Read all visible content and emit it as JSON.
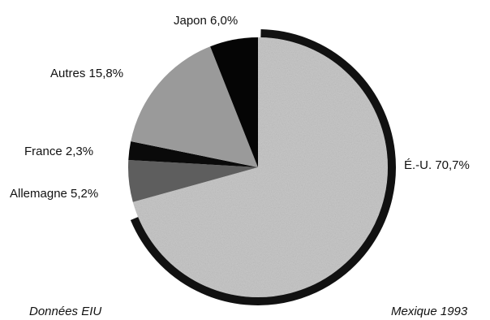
{
  "chart_data": {
    "type": "pie",
    "start_category": "É.-U.",
    "direction": "clockwise",
    "slices": [
      {
        "label": "É.-U. 70,7%",
        "category": "É.-U.",
        "value": 70.7,
        "color": "#c8c8c8",
        "edge": "#111111"
      },
      {
        "label": "Allemagne 5,2%",
        "category": "Allemagne",
        "value": 5.2,
        "color": "#5e5e5e",
        "edge": null
      },
      {
        "label": "France  2,3%",
        "category": "France",
        "value": 2.3,
        "color": "#0a0a0a",
        "edge": null
      },
      {
        "label": "Autres 15,8%",
        "category": "Autres",
        "value": 15.8,
        "color": "#9a9a9a",
        "edge": null
      },
      {
        "label": "Japon 6,0%",
        "category": "Japon",
        "value": 6.0,
        "color": "#050505",
        "edge": null
      }
    ],
    "legend": "none"
  },
  "footer": {
    "source": "Données EIU",
    "country_year": "Mexique 1993"
  }
}
